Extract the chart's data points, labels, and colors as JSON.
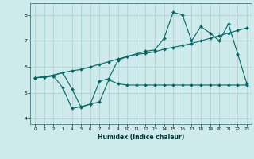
{
  "xlabel": "Humidex (Indice chaleur)",
  "bg_color": "#ceeaea",
  "grid_color": "#aacccc",
  "line_color": "#006868",
  "xlim": [
    -0.5,
    23.5
  ],
  "ylim": [
    3.8,
    8.45
  ],
  "xticks": [
    0,
    1,
    2,
    3,
    4,
    5,
    6,
    7,
    8,
    9,
    10,
    11,
    12,
    13,
    14,
    15,
    16,
    17,
    18,
    19,
    20,
    21,
    22,
    23
  ],
  "yticks": [
    4,
    5,
    6,
    7,
    8
  ],
  "line1_x": [
    0,
    1,
    2,
    3,
    4,
    5,
    6,
    7,
    8,
    9,
    10,
    11,
    12,
    13,
    14,
    15,
    16,
    17,
    18,
    19,
    20,
    21,
    22,
    23
  ],
  "line1_y": [
    5.58,
    5.6,
    5.65,
    5.2,
    4.4,
    4.47,
    4.57,
    4.65,
    5.5,
    5.35,
    5.3,
    5.3,
    5.3,
    5.3,
    5.3,
    5.3,
    5.3,
    5.3,
    5.3,
    5.3,
    5.3,
    5.3,
    5.3,
    5.3
  ],
  "line2_x": [
    0,
    1,
    2,
    3,
    4,
    5,
    6,
    7,
    8,
    9,
    10,
    11,
    12,
    13,
    14,
    15,
    16,
    17,
    18,
    19,
    20,
    21,
    22,
    23
  ],
  "line2_y": [
    5.58,
    5.62,
    5.68,
    5.78,
    5.85,
    5.9,
    6.0,
    6.1,
    6.2,
    6.3,
    6.4,
    6.48,
    6.52,
    6.58,
    6.68,
    6.75,
    6.82,
    6.9,
    7.0,
    7.1,
    7.2,
    7.3,
    7.4,
    7.5
  ],
  "line3_x": [
    0,
    1,
    2,
    3,
    4,
    5,
    6,
    7,
    8,
    9,
    10,
    11,
    12,
    13,
    14,
    15,
    16,
    17,
    18,
    19,
    20,
    21,
    22,
    23
  ],
  "line3_y": [
    5.58,
    5.62,
    5.68,
    5.78,
    5.15,
    4.45,
    4.57,
    5.45,
    5.55,
    6.25,
    6.4,
    6.5,
    6.6,
    6.65,
    7.1,
    8.1,
    8.0,
    7.0,
    7.55,
    7.3,
    7.0,
    7.65,
    6.5,
    5.35
  ]
}
